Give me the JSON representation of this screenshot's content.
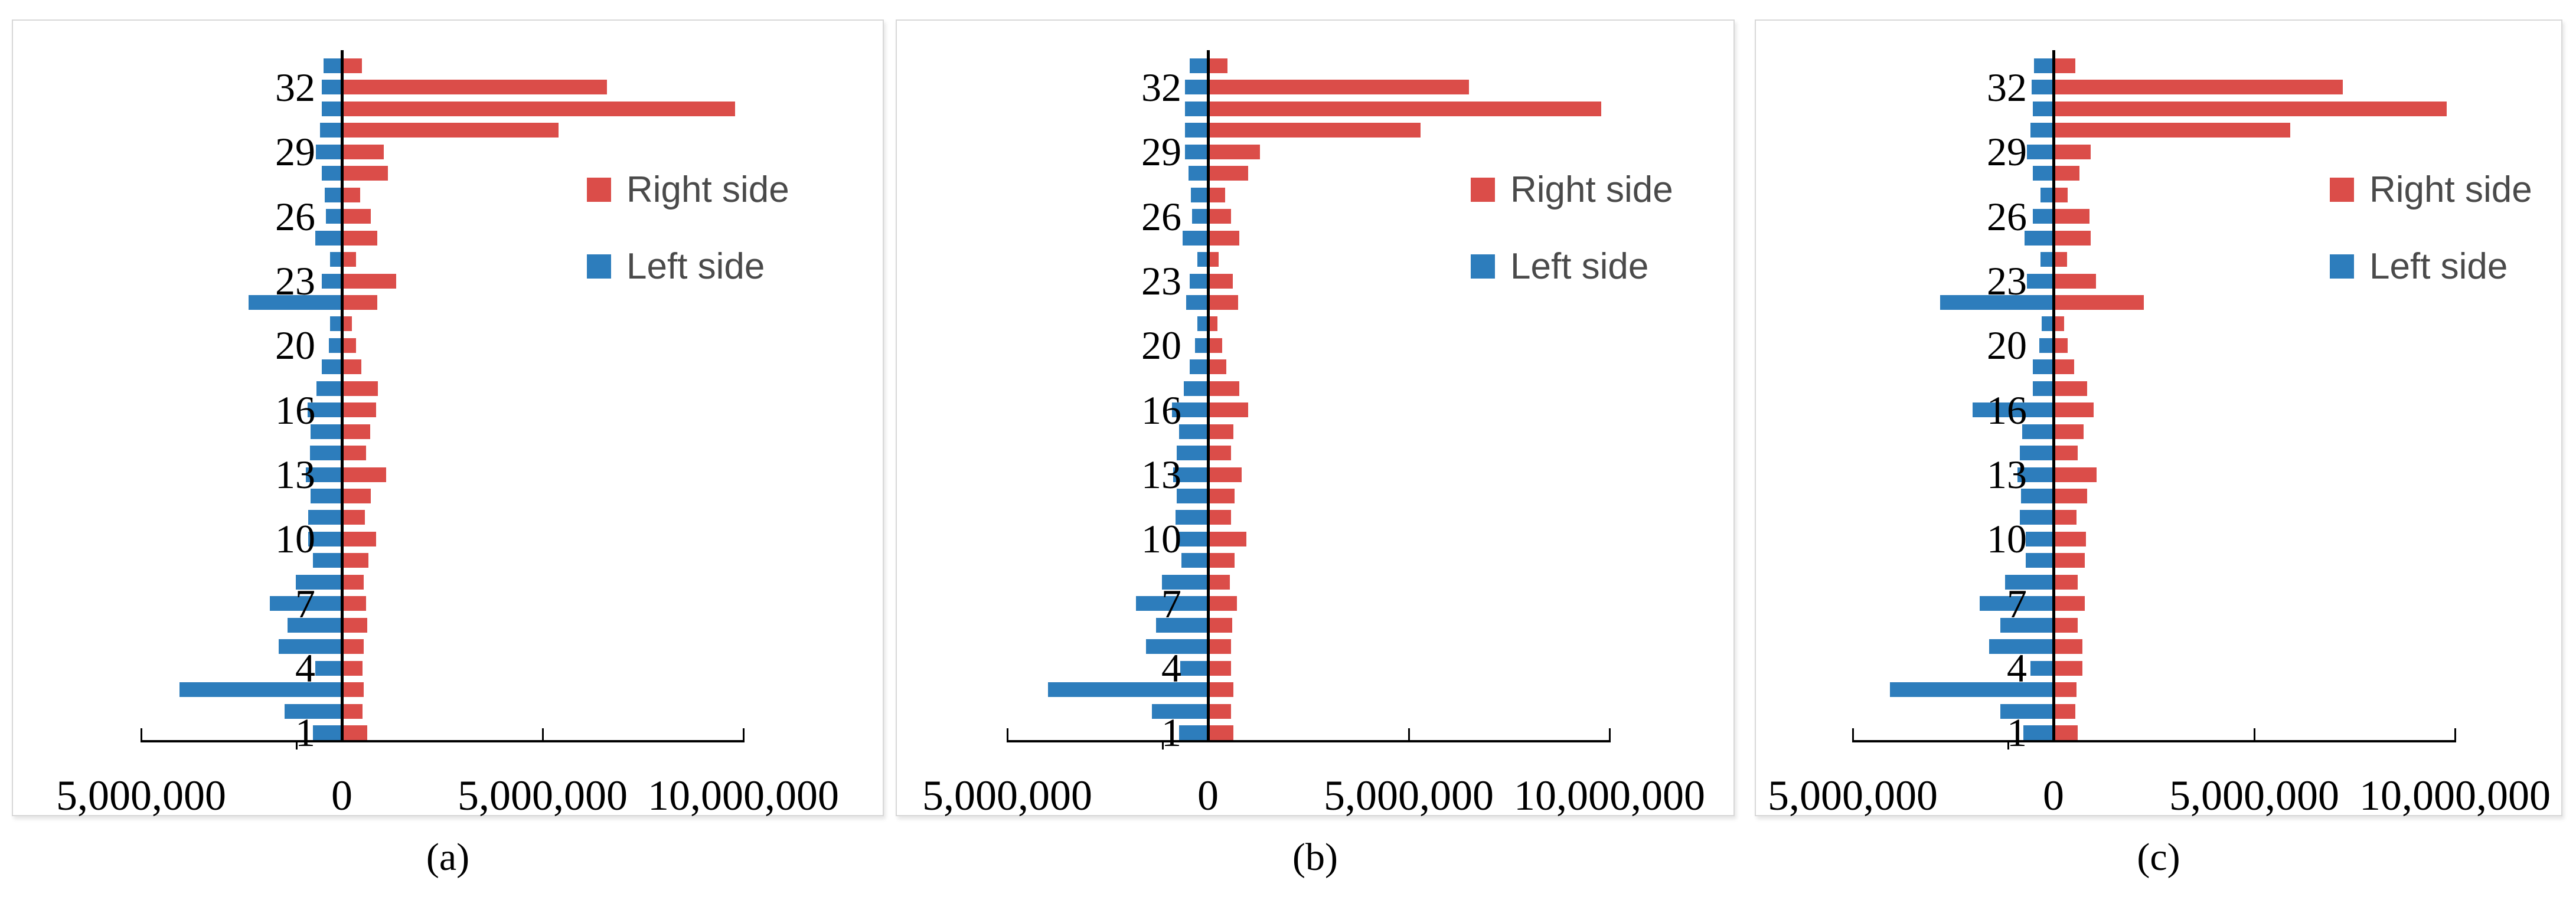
{
  "legend": {
    "right_label": "Right side",
    "left_label": "Left side"
  },
  "colors": {
    "right_bar": "#DB4D49",
    "left_bar": "#2D7DBC",
    "axis": "#000000",
    "legend_text": "#4a4a4a",
    "panel_border": "#d8d8d8"
  },
  "x_axis": {
    "tick_labels": [
      "5,000,000",
      "0",
      "5,000,000",
      "10,000,000"
    ],
    "tick_values_millions": [
      -5,
      0,
      5,
      10
    ]
  },
  "y_axis": {
    "visible_tick_labels": [
      "32",
      "29",
      "26",
      "23",
      "20",
      "16",
      "13",
      "10",
      "7",
      "4",
      "1"
    ],
    "tick_rows_top_to_bottom": [
      1,
      4,
      7,
      10,
      13,
      16,
      19,
      22,
      25,
      28,
      31
    ]
  },
  "chart_data": [
    {
      "id": "a",
      "type": "bar",
      "title": "(a)",
      "orientation": "horizontal-diverging",
      "rows_order": "top_to_bottom",
      "values_unit": "millions",
      "xlim": [
        -5,
        10
      ],
      "grid": false,
      "legend_position": "right-upper",
      "x_tick_labels": [
        "5,000,000",
        "0",
        "5,000,000",
        "10,000,000"
      ],
      "y_tick_labels": [
        {
          "row": 1,
          "label": "32"
        },
        {
          "row": 4,
          "label": "29"
        },
        {
          "row": 7,
          "label": "26"
        },
        {
          "row": 10,
          "label": "23"
        },
        {
          "row": 13,
          "label": "20"
        },
        {
          "row": 16,
          "label": "16"
        },
        {
          "row": 19,
          "label": "13"
        },
        {
          "row": 22,
          "label": "10"
        },
        {
          "row": 25,
          "label": "7"
        },
        {
          "row": 28,
          "label": "4"
        },
        {
          "row": 31,
          "label": "1"
        }
      ],
      "series": [
        {
          "name": "Right side",
          "side": "right",
          "values": [
            0.5,
            6.6,
            9.8,
            5.4,
            1.05,
            1.15,
            0.45,
            0.72,
            0.88,
            0.35,
            1.35,
            0.88,
            0.25,
            0.36,
            0.48,
            0.9,
            0.85,
            0.7,
            0.6,
            1.1,
            0.72,
            0.57,
            0.85,
            0.66,
            0.54,
            0.6,
            0.63,
            0.54,
            0.51,
            0.54,
            0.51,
            0.63
          ]
        },
        {
          "name": "Left side",
          "side": "left",
          "values": [
            0.45,
            0.5,
            0.5,
            0.55,
            0.65,
            0.5,
            0.42,
            0.4,
            0.66,
            0.3,
            0.5,
            2.32,
            0.3,
            0.33,
            0.5,
            0.63,
            0.85,
            0.78,
            0.8,
            0.9,
            0.78,
            0.84,
            0.84,
            0.72,
            1.14,
            1.8,
            1.36,
            1.57,
            0.66,
            4.05,
            1.42,
            0.72
          ]
        }
      ]
    },
    {
      "id": "b",
      "type": "bar",
      "title": "(b)",
      "orientation": "horizontal-diverging",
      "rows_order": "top_to_bottom",
      "values_unit": "millions",
      "xlim": [
        -5,
        10
      ],
      "grid": false,
      "legend_position": "right-upper",
      "x_tick_labels": [
        "5,000,000",
        "0",
        "5,000,000",
        "10,000,000"
      ],
      "y_tick_labels": [
        {
          "row": 1,
          "label": "32"
        },
        {
          "row": 4,
          "label": "29"
        },
        {
          "row": 7,
          "label": "26"
        },
        {
          "row": 10,
          "label": "23"
        },
        {
          "row": 13,
          "label": "20"
        },
        {
          "row": 16,
          "label": "16"
        },
        {
          "row": 19,
          "label": "13"
        },
        {
          "row": 22,
          "label": "10"
        },
        {
          "row": 25,
          "label": "7"
        },
        {
          "row": 28,
          "label": "4"
        },
        {
          "row": 31,
          "label": "1"
        }
      ],
      "series": [
        {
          "name": "Right side",
          "side": "right",
          "values": [
            0.48,
            6.5,
            9.8,
            5.3,
            1.3,
            1.0,
            0.42,
            0.57,
            0.78,
            0.27,
            0.62,
            0.75,
            0.24,
            0.36,
            0.45,
            0.78,
            1.0,
            0.63,
            0.57,
            0.84,
            0.66,
            0.57,
            0.95,
            0.66,
            0.54,
            0.72,
            0.6,
            0.57,
            0.57,
            0.63,
            0.57,
            0.63
          ]
        },
        {
          "name": "Left side",
          "side": "left",
          "values": [
            0.45,
            0.57,
            0.57,
            0.57,
            0.57,
            0.48,
            0.42,
            0.4,
            0.63,
            0.27,
            0.45,
            0.54,
            0.27,
            0.33,
            0.45,
            0.6,
            0.9,
            0.72,
            0.78,
            0.87,
            0.78,
            0.81,
            0.78,
            0.66,
            1.14,
            1.8,
            1.3,
            1.54,
            0.69,
            3.98,
            1.39,
            0.72
          ]
        }
      ]
    },
    {
      "id": "c",
      "type": "bar",
      "title": "(c)",
      "orientation": "horizontal-diverging",
      "rows_order": "top_to_bottom",
      "values_unit": "millions",
      "xlim": [
        -5,
        10
      ],
      "grid": false,
      "legend_position": "right-upper",
      "x_tick_labels": [
        "5,000,000",
        "0",
        "5,000,000",
        "10,000,000"
      ],
      "y_tick_labels": [
        {
          "row": 1,
          "label": "32"
        },
        {
          "row": 4,
          "label": "29"
        },
        {
          "row": 7,
          "label": "26"
        },
        {
          "row": 10,
          "label": "23"
        },
        {
          "row": 13,
          "label": "20"
        },
        {
          "row": 16,
          "label": "16"
        },
        {
          "row": 19,
          "label": "13"
        },
        {
          "row": 22,
          "label": "10"
        },
        {
          "row": 25,
          "label": "7"
        },
        {
          "row": 28,
          "label": "4"
        },
        {
          "row": 31,
          "label": "1"
        }
      ],
      "series": [
        {
          "name": "Right side",
          "side": "right",
          "values": [
            0.54,
            7.2,
            9.8,
            5.9,
            0.93,
            0.64,
            0.36,
            0.89,
            0.93,
            0.34,
            1.06,
            2.25,
            0.27,
            0.36,
            0.51,
            0.84,
            1.0,
            0.75,
            0.6,
            1.08,
            0.84,
            0.57,
            0.81,
            0.78,
            0.6,
            0.78,
            0.6,
            0.72,
            0.72,
            0.57,
            0.54,
            0.6
          ]
        },
        {
          "name": "Left side",
          "side": "left",
          "values": [
            0.48,
            0.54,
            0.51,
            0.57,
            0.66,
            0.51,
            0.33,
            0.51,
            0.72,
            0.33,
            0.66,
            2.83,
            0.3,
            0.36,
            0.51,
            0.51,
            2.02,
            0.78,
            0.84,
            0.9,
            0.81,
            0.84,
            0.69,
            0.69,
            1.2,
            1.84,
            1.33,
            1.6,
            0.57,
            4.07,
            1.33,
            0.75
          ]
        }
      ]
    }
  ]
}
